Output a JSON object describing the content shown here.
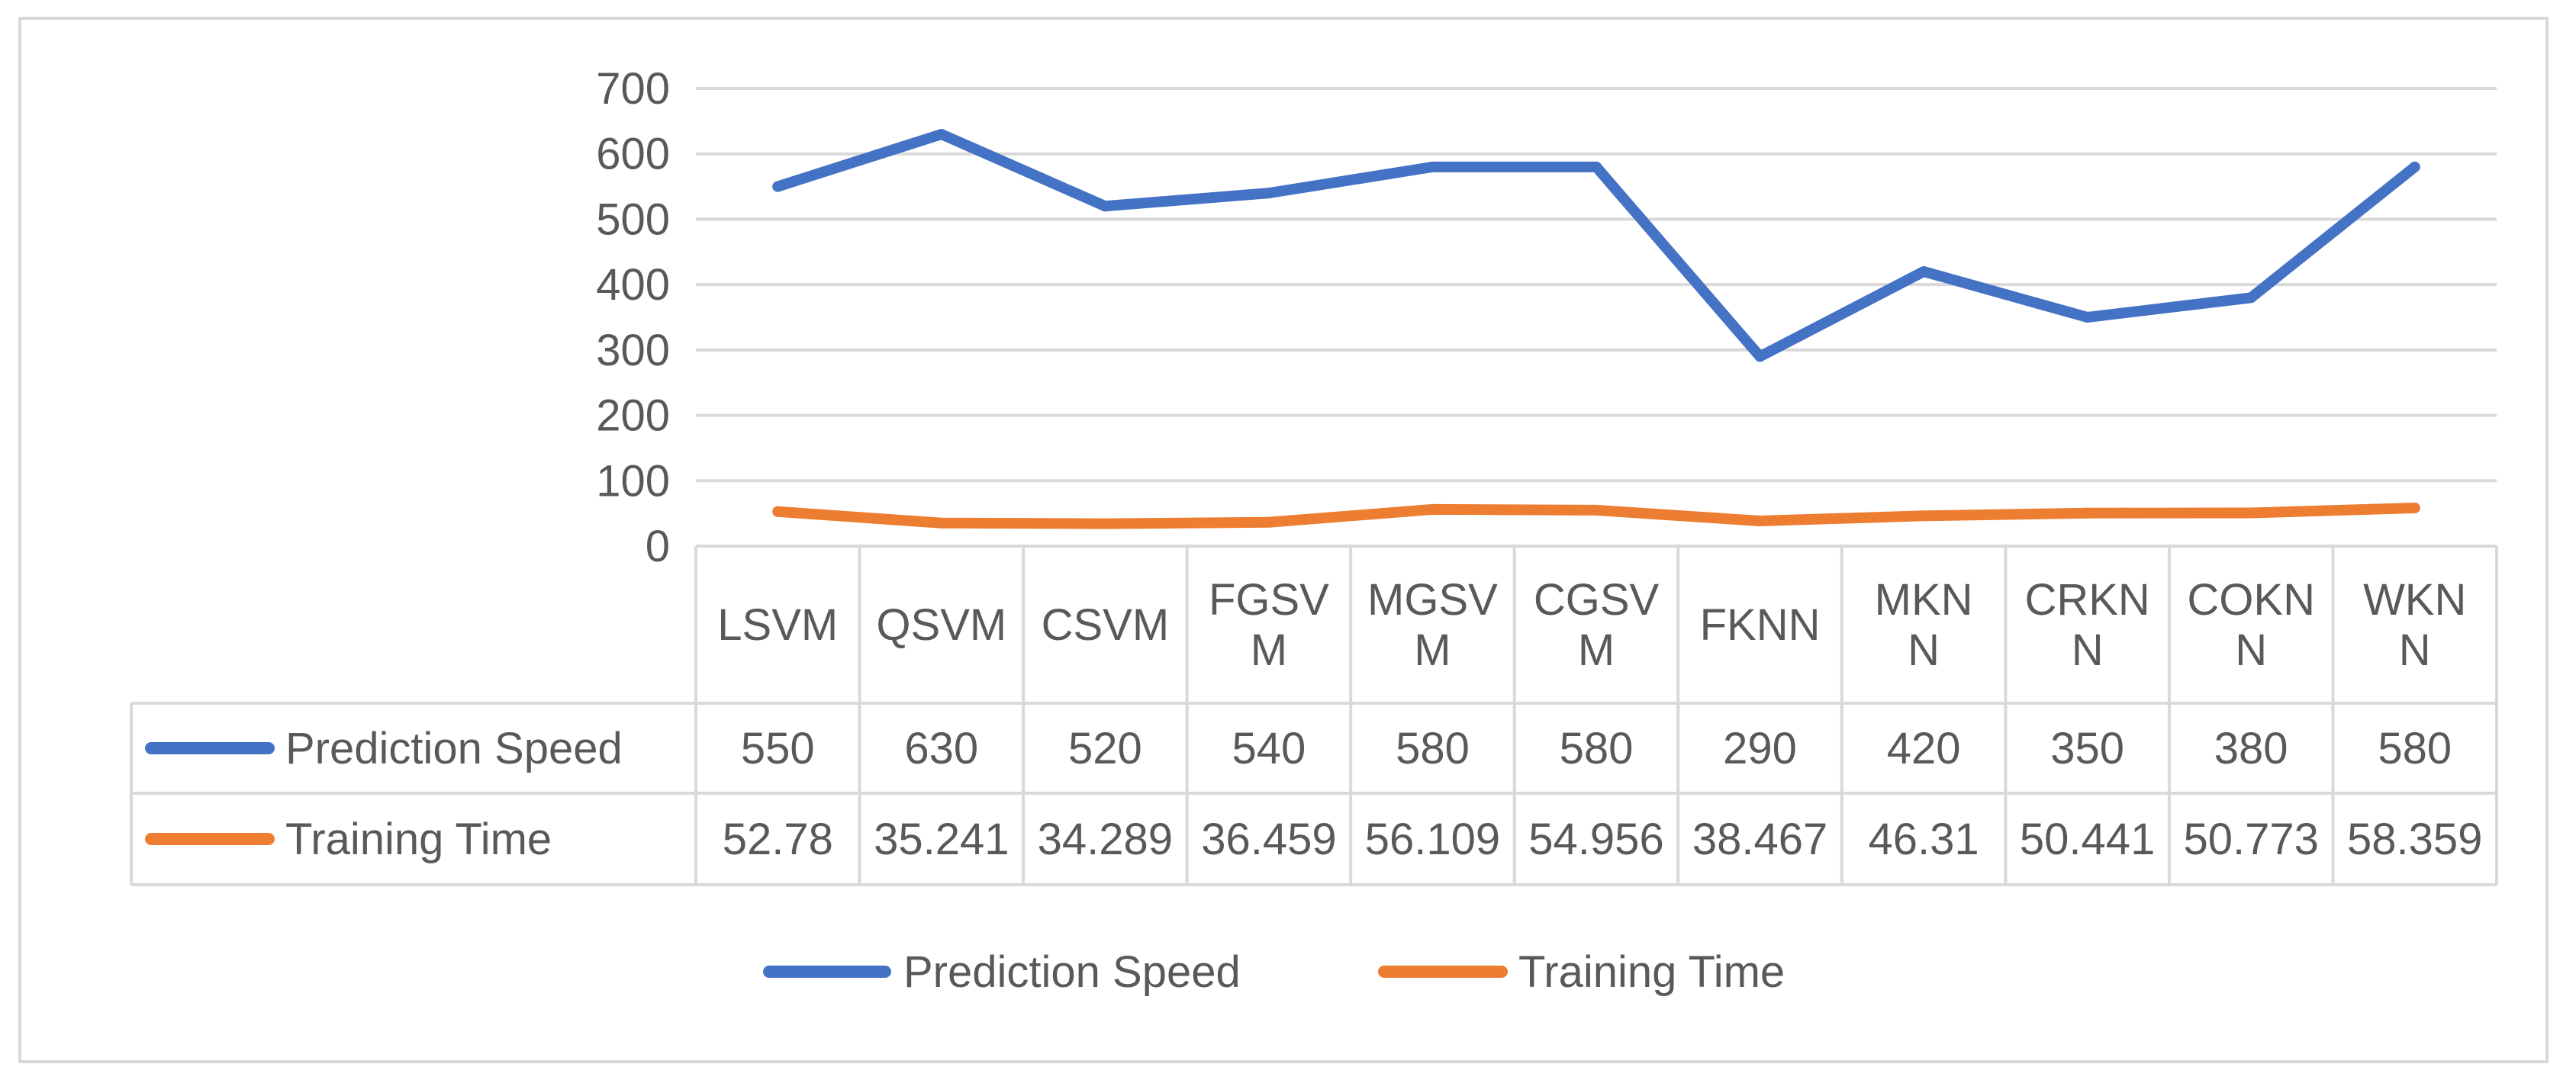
{
  "chart_data": {
    "type": "line",
    "title": "",
    "xlabel": "",
    "ylabel": "",
    "ylim": [
      0,
      700
    ],
    "yticks": [
      0,
      100,
      200,
      300,
      400,
      500,
      600,
      700
    ],
    "grid": true,
    "legend_position": "bottom",
    "data_table": true,
    "categories": [
      "LSVM",
      "QSVM",
      "CSVM",
      "FGSVM",
      "MGSVM",
      "CGSVM",
      "FKNN",
      "MKNN",
      "CRKNN",
      "COKNN",
      "WKNN"
    ],
    "category_label_lines": [
      [
        "LSVM"
      ],
      [
        "QSVM"
      ],
      [
        "CSVM"
      ],
      [
        "FGSV",
        "M"
      ],
      [
        "MGSV",
        "M"
      ],
      [
        "CGSV",
        "M"
      ],
      [
        "FKNN"
      ],
      [
        "MKN",
        "N"
      ],
      [
        "CRKN",
        "N"
      ],
      [
        "COKN",
        "N"
      ],
      [
        "WKN",
        "N"
      ]
    ],
    "series": [
      {
        "name": "Prediction Speed",
        "color": "#4472c4",
        "values": [
          550,
          630,
          520,
          540,
          580,
          580,
          290,
          420,
          350,
          380,
          580
        ],
        "table_values": [
          "550",
          "630",
          "520",
          "540",
          "580",
          "580",
          "290",
          "420",
          "350",
          "380",
          "580"
        ]
      },
      {
        "name": "Training Time",
        "color": "#ed7d31",
        "values": [
          52.78,
          35.241,
          34.289,
          36.459,
          56.109,
          54.956,
          38.467,
          46.31,
          50.441,
          50.773,
          58.359
        ],
        "table_values": [
          "52.78",
          "35.241",
          "34.289",
          "36.459",
          "56.109",
          "54.956",
          "38.467",
          "46.31",
          "50.441",
          "50.773",
          "58.359"
        ]
      }
    ],
    "colors": {
      "grid": "#d9d9d9",
      "text": "#595959"
    }
  }
}
